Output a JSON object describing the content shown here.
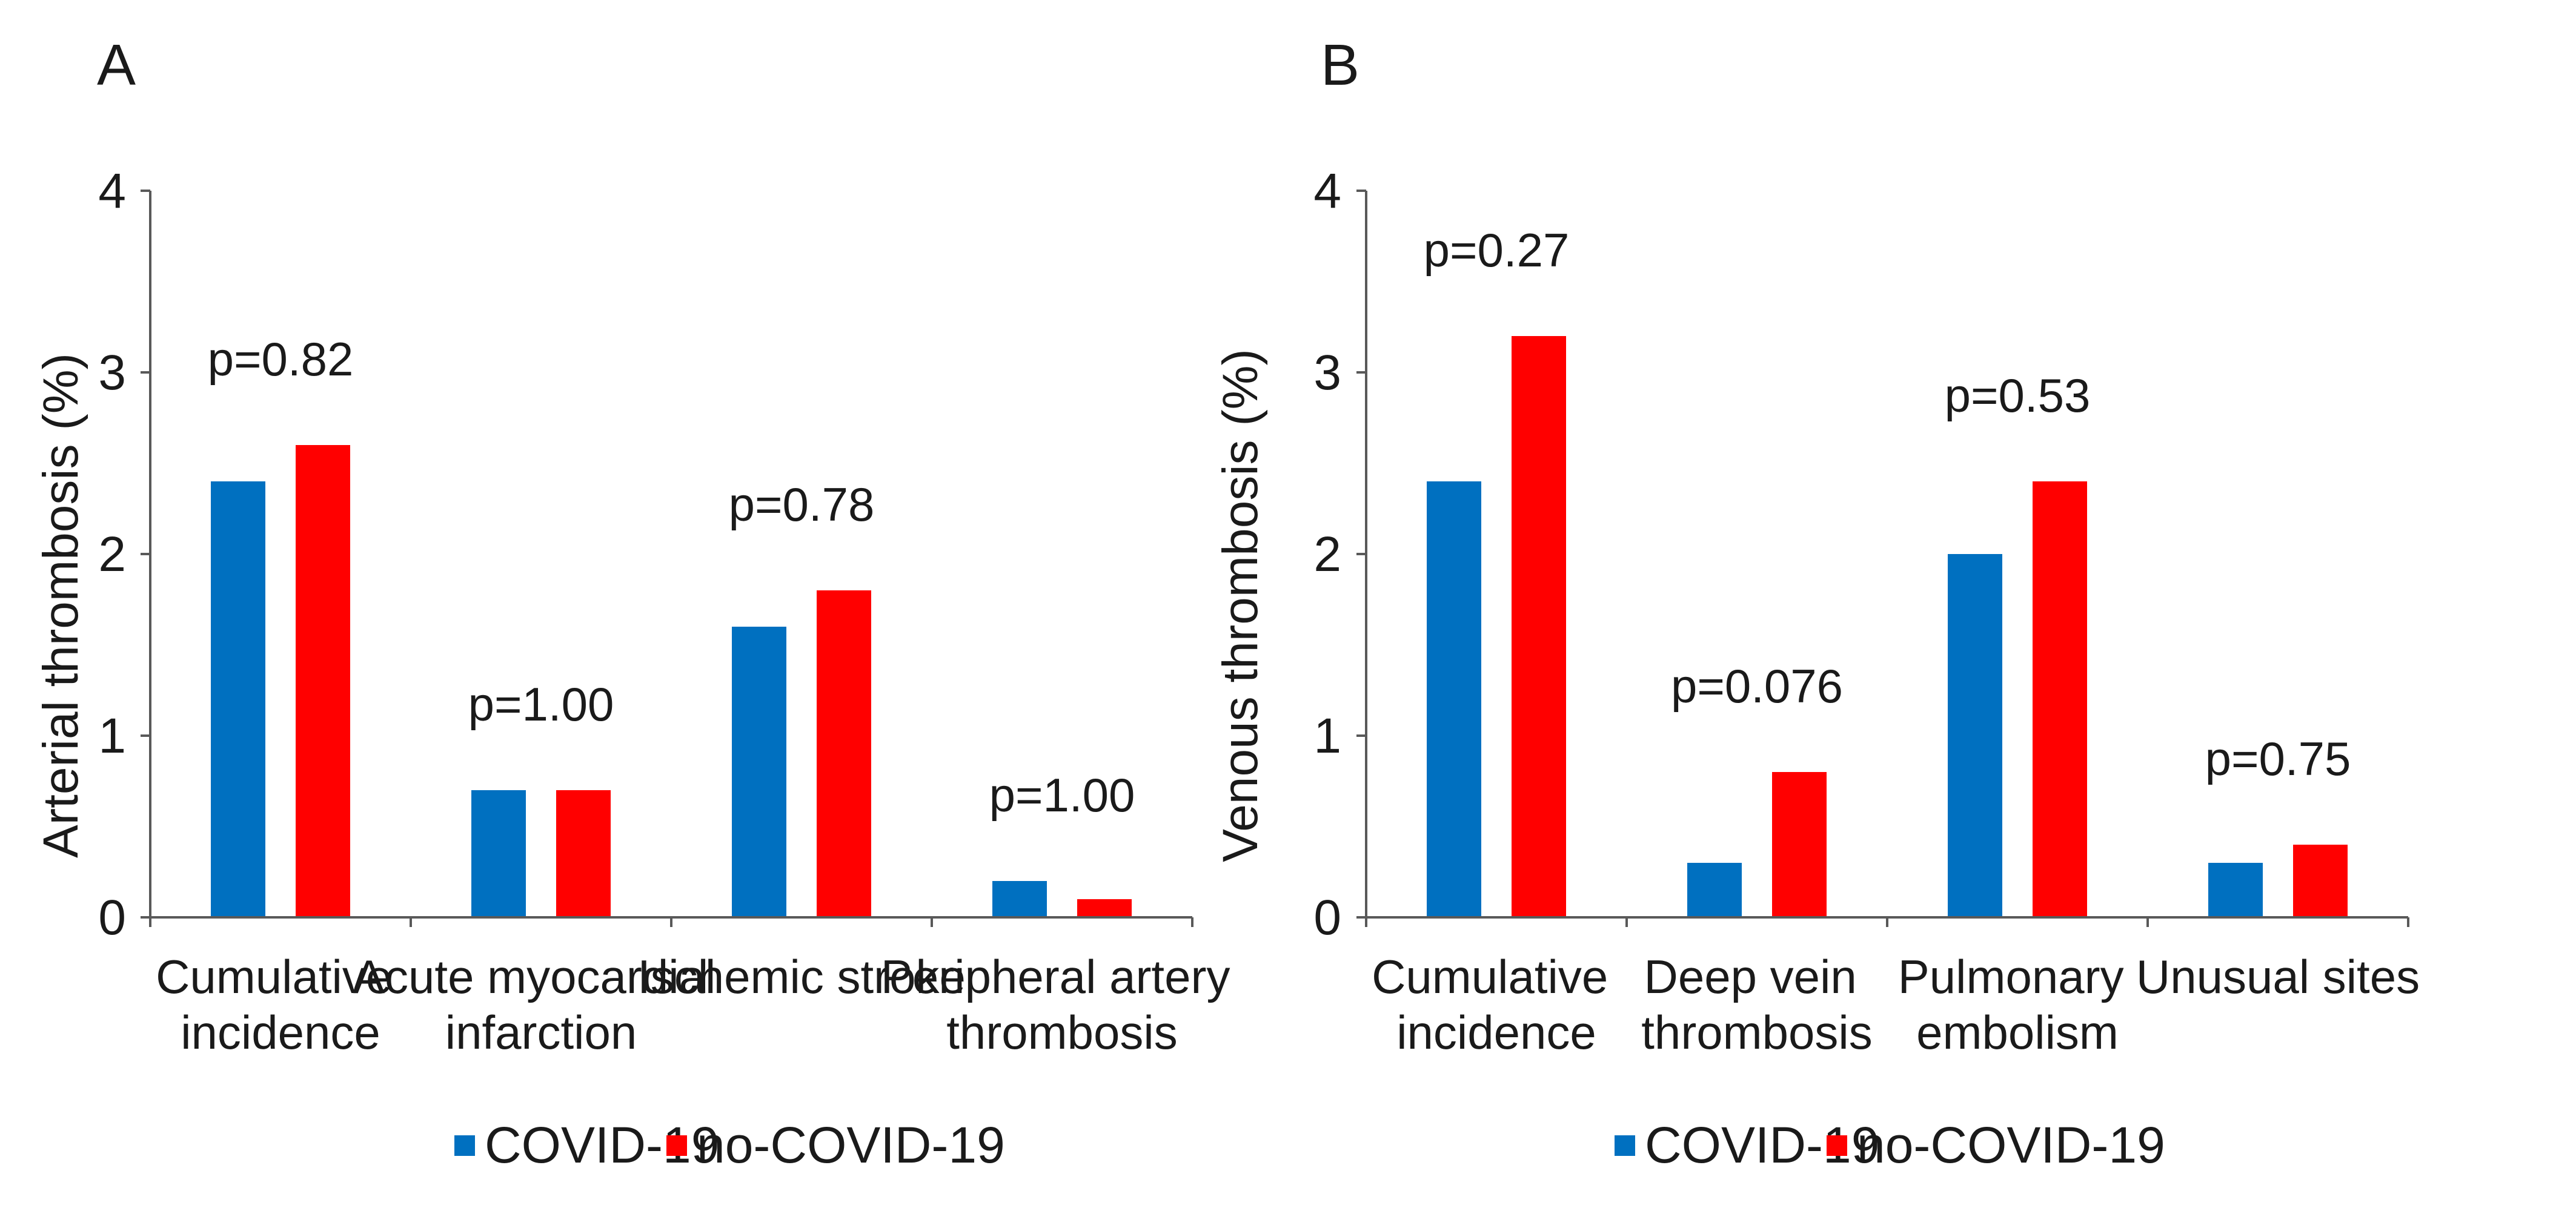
{
  "chart_data": [
    {
      "type": "bar",
      "panel_label": "A",
      "title": "",
      "xlabel": "",
      "ylabel": "Arterial thrombosis (%)",
      "ylim": [
        0,
        4
      ],
      "yticks": [
        "0",
        "1",
        "2",
        "3",
        "4"
      ],
      "categories": [
        [
          "Cumulative",
          "incidence"
        ],
        [
          "Acute myocardial",
          "infarction"
        ],
        [
          "Ischemic stroke"
        ],
        [
          "Peripheral artery",
          "thrombosis"
        ]
      ],
      "series": [
        {
          "name": "COVID-19",
          "color": "#0070c0",
          "values": [
            2.4,
            0.7,
            1.6,
            0.2
          ]
        },
        {
          "name": "no-COVID-19",
          "color": "#ff0000",
          "values": [
            2.6,
            0.7,
            1.8,
            0.1
          ]
        }
      ],
      "annotations": [
        "p=0.82",
        "p=1.00",
        "p=0.78",
        "p=1.00"
      ],
      "legend": "bottom",
      "grid": false
    },
    {
      "type": "bar",
      "panel_label": "B",
      "title": "",
      "xlabel": "",
      "ylabel": "Venous thrombosis (%)",
      "ylim": [
        0,
        4
      ],
      "yticks": [
        "0",
        "1",
        "2",
        "3",
        "4"
      ],
      "categories": [
        [
          "Cumulative",
          "incidence"
        ],
        [
          "Deep vein",
          "thrombosis"
        ],
        [
          "Pulmonary",
          "embolism"
        ],
        [
          "Unusual sites"
        ]
      ],
      "series": [
        {
          "name": "COVID-19",
          "color": "#0070c0",
          "values": [
            2.4,
            0.3,
            2.0,
            0.3
          ]
        },
        {
          "name": "no-COVID-19",
          "color": "#ff0000",
          "values": [
            3.2,
            0.8,
            2.4,
            0.4
          ]
        }
      ],
      "annotations": [
        "p=0.27",
        "p=0.076",
        "p=0.53",
        "p=0.75"
      ],
      "legend": "bottom",
      "grid": false
    }
  ]
}
